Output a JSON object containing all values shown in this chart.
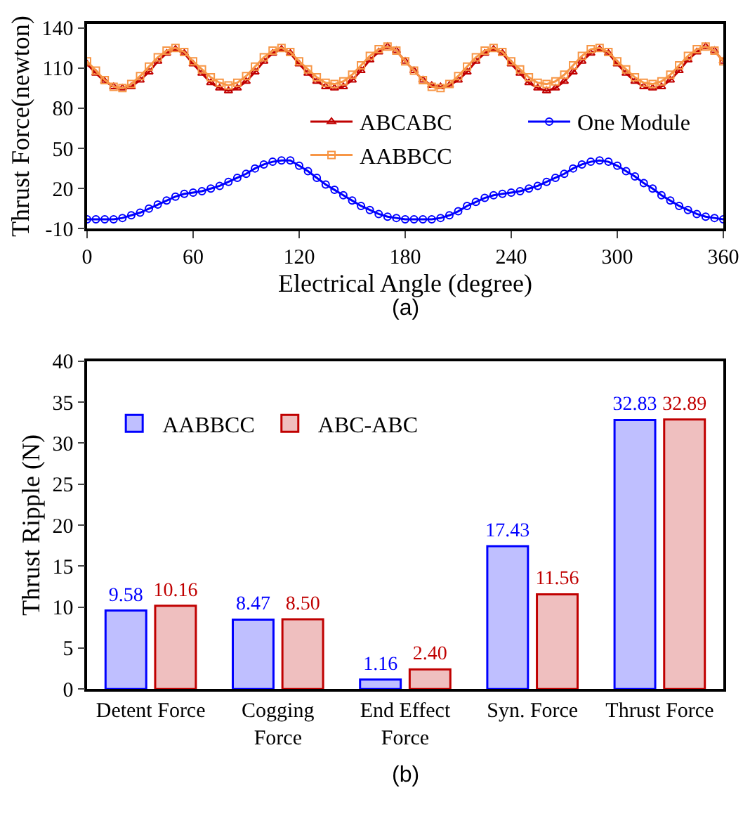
{
  "chart_data": [
    {
      "type": "line",
      "xlabel": "Electrical Angle (degree)",
      "ylabel": "Thrust Force(newton)",
      "xlim": [
        0,
        360
      ],
      "xticks": [
        0,
        60,
        120,
        180,
        240,
        300,
        360
      ],
      "ylim": [
        -10,
        143
      ],
      "yticks": [
        -10,
        20,
        50,
        80,
        110,
        140
      ],
      "grid": false,
      "legend": "center",
      "line_style": "solid",
      "annotations": [
        "(a)"
      ],
      "x": [
        0,
        5,
        10,
        15,
        20,
        25,
        30,
        35,
        40,
        45,
        50,
        55,
        60,
        65,
        70,
        75,
        80,
        85,
        90,
        95,
        100,
        105,
        110,
        115,
        120,
        125,
        130,
        135,
        140,
        145,
        150,
        155,
        160,
        165,
        170,
        175,
        180,
        185,
        190,
        195,
        200,
        205,
        210,
        215,
        220,
        225,
        230,
        235,
        240,
        245,
        250,
        255,
        260,
        265,
        270,
        275,
        280,
        285,
        290,
        295,
        300,
        305,
        310,
        315,
        320,
        325,
        330,
        335,
        340,
        345,
        350,
        355,
        360
      ],
      "series": [
        {
          "name": "ABCABC",
          "color": "#c00000",
          "marker": "triangle",
          "values": [
            113,
            106,
            100,
            96,
            95,
            96,
            101,
            107,
            115,
            121,
            124,
            121,
            113,
            106,
            99,
            95,
            93,
            95,
            100,
            107,
            115,
            121,
            124,
            121,
            113,
            106,
            100,
            96,
            95,
            96,
            101,
            108,
            116,
            122,
            126,
            123,
            115,
            108,
            101,
            97,
            96,
            97,
            101,
            107,
            115,
            121,
            124,
            121,
            113,
            106,
            99,
            95,
            93,
            95,
            100,
            107,
            115,
            121,
            124,
            121,
            113,
            106,
            100,
            96,
            95,
            96,
            101,
            108,
            116,
            122,
            126,
            123,
            115
          ]
        },
        {
          "name": "One Module",
          "color": "#0000ff",
          "marker": "circle",
          "values": [
            -3,
            -3,
            -3,
            -3,
            -2,
            0,
            2,
            5,
            8,
            11,
            14,
            16,
            17,
            18,
            20,
            22,
            25,
            28,
            31,
            35,
            38,
            40,
            41,
            41,
            37,
            33,
            28,
            23,
            19,
            15,
            11,
            7,
            4,
            1,
            -1,
            -2,
            -3,
            -3,
            -3,
            -3,
            -2,
            0,
            3,
            7,
            10,
            13,
            15,
            16,
            17,
            18,
            20,
            22,
            25,
            28,
            31,
            35,
            38,
            40,
            41,
            40,
            37,
            33,
            29,
            24,
            20,
            15,
            11,
            7,
            4,
            1,
            -1,
            -2,
            -3
          ]
        },
        {
          "name": "AABBCC",
          "color": "#f79646",
          "marker": "square",
          "values": [
            115,
            108,
            101,
            96,
            95,
            98,
            104,
            111,
            118,
            123,
            125,
            122,
            115,
            109,
            103,
            99,
            97,
            99,
            104,
            111,
            118,
            123,
            125,
            122,
            115,
            109,
            103,
            99,
            98,
            100,
            105,
            112,
            119,
            124,
            126,
            123,
            115,
            108,
            101,
            96,
            95,
            98,
            104,
            111,
            118,
            123,
            125,
            122,
            115,
            109,
            103,
            99,
            98,
            100,
            105,
            112,
            119,
            124,
            125,
            122,
            115,
            109,
            103,
            99,
            98,
            100,
            105,
            112,
            119,
            124,
            126,
            123,
            115
          ]
        }
      ]
    },
    {
      "type": "bar",
      "ylabel": "Thrust Ripple (N)",
      "ylim": [
        0,
        40
      ],
      "yticks": [
        0,
        5,
        10,
        15,
        20,
        25,
        30,
        35,
        40
      ],
      "grid": false,
      "legend": "top left",
      "annotations": [
        "(b)"
      ],
      "categories": [
        "Detent Force",
        "Cogging\nForce",
        "End Effect\nForce",
        "Syn. Force",
        "Thrust Force"
      ],
      "series": [
        {
          "name": "AABBCC",
          "color": "#0000ff",
          "values": [
            9.58,
            8.47,
            1.16,
            17.43,
            32.83
          ],
          "value_labels": [
            "9.58",
            "8.47",
            "1.16",
            "17.43",
            "32.83"
          ]
        },
        {
          "name": "ABC-ABC",
          "color": "#c00000",
          "values": [
            10.16,
            8.5,
            2.4,
            11.56,
            32.89
          ],
          "value_labels": [
            "10.16",
            "8.50",
            "2.40",
            "11.56",
            "32.89"
          ]
        }
      ]
    }
  ]
}
